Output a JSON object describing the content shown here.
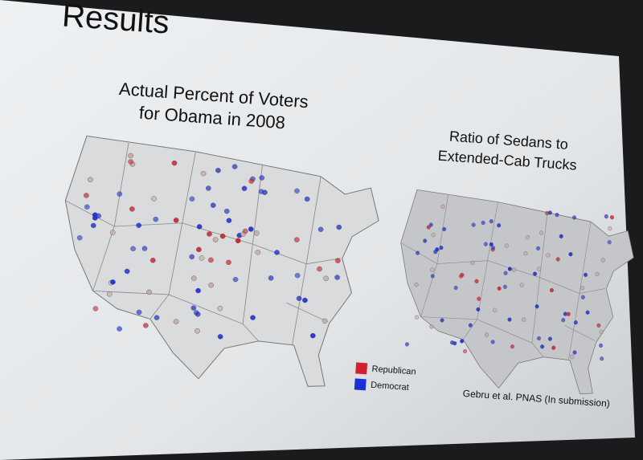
{
  "slide": {
    "title": "Results",
    "left_map": {
      "title_lines": [
        "Actual  Percent of Voters",
        "for Obama in 2008"
      ]
    },
    "right_map": {
      "title_lines": [
        "Ratio of Sedans to",
        "Extended-Cab Trucks"
      ]
    },
    "legend": [
      {
        "label": "Republican",
        "color": "#d3202d"
      },
      {
        "label": "Democrat",
        "color": "#1b2fd6"
      }
    ],
    "citation": "Gebru et al. PNAS (In submission)"
  }
}
